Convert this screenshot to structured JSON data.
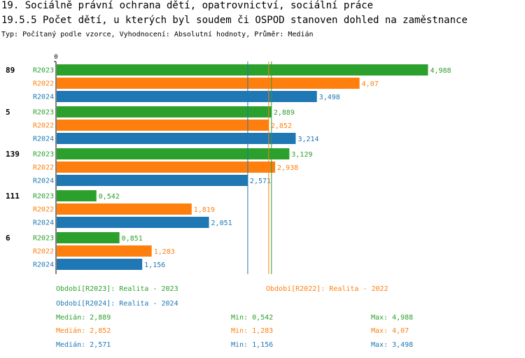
{
  "title": "19. Sociálně právní ochrana dětí, opatrovnictví, sociální práce",
  "subtitle": "19.5.5 Počet dětí, u kterých byl soudem či OSPOD stanoven dohled na zaměstnance",
  "info": "Typ: Počítaný podle vzorce, Vyhodnocení: Absolutní hodnoty, Průměr: Medián",
  "colors": {
    "R2023": "#2ca02c",
    "R2022": "#ff7f0e",
    "R2024": "#1f77b4"
  },
  "chart_data": {
    "type": "bar",
    "orientation": "horizontal",
    "axis_zero_label": "0",
    "xlim": [
      0,
      5.65
    ],
    "categories": [
      "89",
      "5",
      "139",
      "111",
      "6"
    ],
    "series": [
      {
        "name": "R2023",
        "values": [
          4.988,
          2.889,
          3.129,
          0.542,
          0.851
        ],
        "labels": [
          "4,988",
          "2,889",
          "3,129",
          "0,542",
          "0,851"
        ]
      },
      {
        "name": "R2022",
        "values": [
          4.07,
          2.852,
          2.938,
          1.819,
          1.283
        ],
        "labels": [
          "4,07",
          "2,852",
          "2,938",
          "1,819",
          "1,283"
        ]
      },
      {
        "name": "R2024",
        "values": [
          3.498,
          3.214,
          2.571,
          2.051,
          1.156
        ],
        "labels": [
          "3,498",
          "3,214",
          "2,571",
          "2,051",
          "1,156"
        ]
      }
    ],
    "median_lines": [
      {
        "series": "R2023",
        "value": 2.889
      },
      {
        "series": "R2022",
        "value": 2.852
      },
      {
        "series": "R2024",
        "value": 2.571
      }
    ]
  },
  "legend": {
    "periods": [
      {
        "series": "R2023",
        "text": "Období[R2023]: Realita - 2023"
      },
      {
        "series": "R2022",
        "text": "Období[R2022]: Realita - 2022"
      },
      {
        "series": "R2024",
        "text": "Období[R2024]: Realita - 2024"
      }
    ],
    "stats": [
      {
        "series": "R2023",
        "median": "Medián: 2,889",
        "min": "Min: 0,542",
        "max": "Max: 4,988"
      },
      {
        "series": "R2022",
        "median": "Medián: 2,852",
        "min": "Min: 1,283",
        "max": "Max: 4,07"
      },
      {
        "series": "R2024",
        "median": "Medián: 2,571",
        "min": "Min: 1,156",
        "max": "Max: 3,498"
      }
    ]
  }
}
